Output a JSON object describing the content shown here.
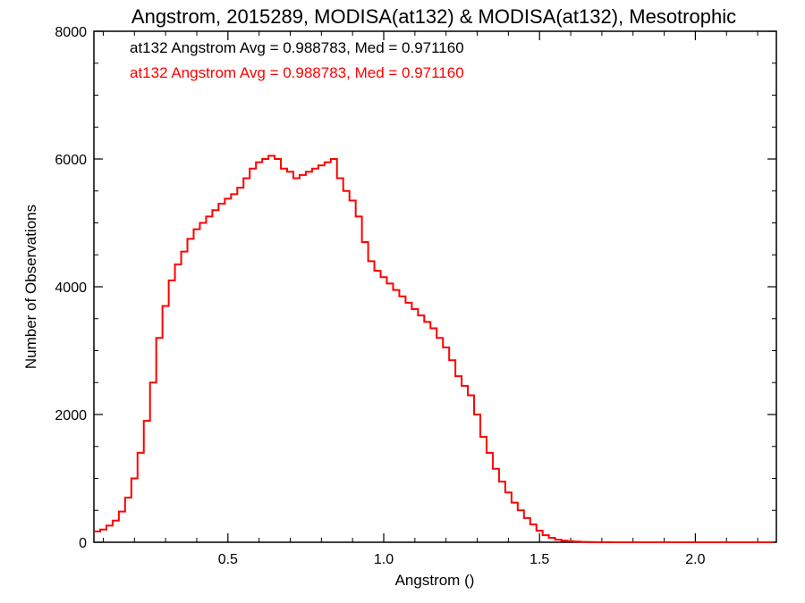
{
  "chart_data": {
    "type": "histogram",
    "title": "Angstrom, 2015289, MODISA(at132) & MODISA(at132), Mesotrophic",
    "xlabel": "Angstrom ()",
    "ylabel": "Number of Observations",
    "xlim": [
      0.07,
      2.26
    ],
    "ylim": [
      0,
      8000
    ],
    "x_ticks": [
      0.5,
      1.0,
      1.5,
      2.0
    ],
    "x_tick_labels": [
      "0.5",
      "1.0",
      "1.5",
      "2.0"
    ],
    "y_ticks": [
      0,
      2000,
      4000,
      6000,
      8000
    ],
    "y_tick_labels": [
      "0",
      "2000",
      "4000",
      "6000",
      "8000"
    ],
    "grid": false,
    "annotations": [
      {
        "text": "at132 Angstrom Avg = 0.988783, Med = 0.971160",
        "color": "#000000"
      },
      {
        "text": "at132 Angstrom Avg = 0.988783, Med = 0.971160",
        "color": "#ff0000"
      }
    ],
    "series": [
      {
        "color": "#ff0000",
        "step": "mid",
        "x": [
          0.08,
          0.1,
          0.12,
          0.14,
          0.16,
          0.18,
          0.2,
          0.22,
          0.24,
          0.26,
          0.28,
          0.3,
          0.32,
          0.34,
          0.36,
          0.38,
          0.4,
          0.42,
          0.44,
          0.46,
          0.48,
          0.5,
          0.52,
          0.54,
          0.56,
          0.58,
          0.6,
          0.62,
          0.64,
          0.66,
          0.68,
          0.7,
          0.72,
          0.74,
          0.76,
          0.78,
          0.8,
          0.82,
          0.84,
          0.86,
          0.88,
          0.9,
          0.92,
          0.94,
          0.96,
          0.98,
          1.0,
          1.02,
          1.04,
          1.06,
          1.08,
          1.1,
          1.12,
          1.14,
          1.16,
          1.18,
          1.2,
          1.22,
          1.24,
          1.26,
          1.28,
          1.3,
          1.32,
          1.34,
          1.36,
          1.38,
          1.4,
          1.42,
          1.44,
          1.46,
          1.48,
          1.5,
          1.52,
          1.54,
          1.56,
          1.58,
          1.6,
          1.62,
          1.64,
          1.66,
          1.68,
          1.7,
          1.72,
          1.74,
          1.76,
          1.78,
          1.8,
          1.82,
          1.84,
          1.86,
          1.88,
          1.9,
          1.92,
          1.94,
          1.96,
          1.98,
          2.0,
          2.02,
          2.04,
          2.06,
          2.08,
          2.1,
          2.12,
          2.14,
          2.16,
          2.18,
          2.2,
          2.22,
          2.24
        ],
        "y": [
          170,
          200,
          260,
          340,
          480,
          700,
          1000,
          1400,
          1900,
          2500,
          3200,
          3700,
          4100,
          4350,
          4550,
          4750,
          4900,
          5000,
          5100,
          5200,
          5300,
          5380,
          5450,
          5550,
          5700,
          5850,
          5950,
          6000,
          6050,
          6000,
          5850,
          5800,
          5700,
          5750,
          5800,
          5850,
          5900,
          5950,
          6000,
          5700,
          5500,
          5350,
          5100,
          4700,
          4400,
          4250,
          4150,
          4050,
          3950,
          3850,
          3750,
          3650,
          3550,
          3450,
          3350,
          3200,
          3050,
          2850,
          2600,
          2450,
          2300,
          2000,
          1650,
          1400,
          1150,
          950,
          780,
          620,
          500,
          380,
          280,
          180,
          110,
          70,
          40,
          25,
          15,
          10,
          5,
          3,
          2,
          1,
          1,
          0,
          0,
          0,
          0,
          0,
          0,
          0,
          0,
          0,
          0,
          0,
          0,
          0,
          0,
          0,
          0,
          0,
          0,
          0,
          0,
          0,
          0,
          0,
          0,
          0,
          0
        ]
      }
    ]
  }
}
